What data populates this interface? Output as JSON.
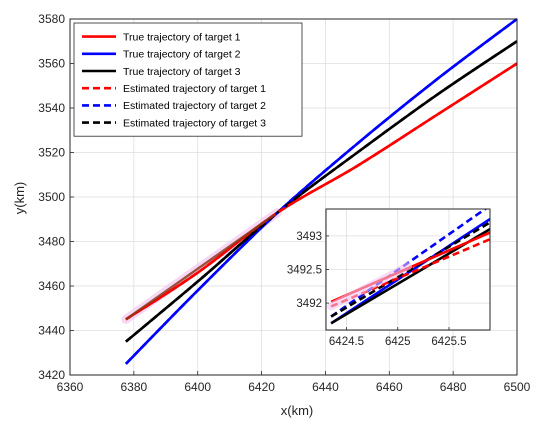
{
  "chart_data": {
    "type": "line",
    "xlabel": "x(km)",
    "ylabel": "y(km)",
    "xlim": [
      6360,
      6500
    ],
    "ylim": [
      3420,
      3580
    ],
    "xticks": [
      "6360",
      "6380",
      "6400",
      "6420",
      "6440",
      "6460",
      "6480",
      "6500"
    ],
    "yticks": [
      "3420",
      "3440",
      "3460",
      "3480",
      "3500",
      "3520",
      "3540",
      "3560",
      "3580"
    ],
    "grid": true,
    "legend_position": "top-left",
    "series": [
      {
        "name": "True trajectory of target 1",
        "color": "#ff0000",
        "dash": false,
        "x": [
          6377.5,
          6400,
          6425,
          6450,
          6475,
          6500
        ],
        "y": [
          3445,
          3466,
          3493,
          3514,
          3537,
          3560
        ]
      },
      {
        "name": "True trajectory of target 2",
        "color": "#0000ff",
        "dash": false,
        "x": [
          6377.5,
          6400,
          6425,
          6450,
          6475,
          6500
        ],
        "y": [
          3425,
          3458,
          3493,
          3524,
          3553,
          3580
        ]
      },
      {
        "name": "True trajectory of target 3",
        "color": "#000000",
        "dash": false,
        "x": [
          6377.5,
          6400,
          6425,
          6450,
          6475,
          6500
        ],
        "y": [
          3435,
          3462,
          3493,
          3520,
          3546,
          3570
        ]
      },
      {
        "name": "Estimated trajectory of target 1",
        "color": "#ff0000",
        "dash": true,
        "x": [
          6377.5,
          6400,
          6425,
          6450,
          6475,
          6500
        ],
        "y": [
          3445,
          3466,
          3493,
          3514,
          3537,
          3560
        ]
      },
      {
        "name": "Estimated trajectory of target 2",
        "color": "#0000ff",
        "dash": true,
        "x": [
          6377.5,
          6400,
          6425,
          6450,
          6475,
          6500
        ],
        "y": [
          3425,
          3458,
          3493,
          3524,
          3553,
          3580
        ]
      },
      {
        "name": "Estimated trajectory of target 3",
        "color": "#000000",
        "dash": true,
        "x": [
          6377.5,
          6400,
          6425,
          6450,
          6475,
          6500
        ],
        "y": [
          3435,
          3462,
          3493,
          3520,
          3546,
          3570
        ]
      }
    ],
    "inset": {
      "xlim": [
        6424.3,
        6425.9
      ],
      "ylim": [
        3491.6,
        3493.4
      ],
      "xticks": [
        "6424.5",
        "6425",
        "6425.5"
      ],
      "yticks": [
        "3492",
        "3492.5",
        "3493"
      ],
      "grid": true,
      "lines": [
        {
          "name": "Estimated trajectory of target 2",
          "color": "#0000ff",
          "dash": true,
          "x": [
            6424.35,
            6425.9
          ],
          "y": [
            3491.8,
            3493.45
          ]
        },
        {
          "name": "True trajectory of target 2",
          "color": "#0000ff",
          "dash": false,
          "x": [
            6424.35,
            6425.9
          ],
          "y": [
            3491.7,
            3493.25
          ]
        },
        {
          "name": "Estimated trajectory of target 3",
          "color": "#000000",
          "dash": true,
          "x": [
            6424.35,
            6425.9
          ],
          "y": [
            3491.8,
            3493.2
          ]
        },
        {
          "name": "True trajectory of target 3",
          "color": "#000000",
          "dash": false,
          "x": [
            6424.35,
            6425.9
          ],
          "y": [
            3491.7,
            3493.1
          ]
        },
        {
          "name": "True trajectory of target 1",
          "color": "#ff0000",
          "dash": false,
          "x": [
            6424.35,
            6425.9
          ],
          "y": [
            3492.02,
            3493.05
          ]
        },
        {
          "name": "Estimated trajectory of target 1",
          "color": "#ff0000",
          "dash": true,
          "x": [
            6424.35,
            6425.9
          ],
          "y": [
            3491.95,
            3492.95
          ]
        }
      ]
    }
  }
}
